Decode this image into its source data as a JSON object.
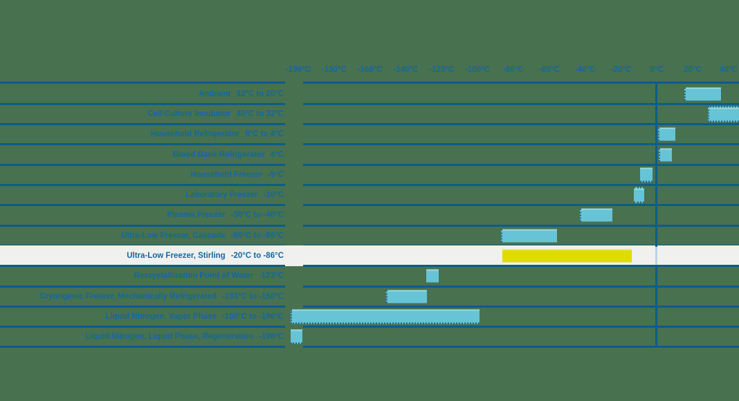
{
  "colors": {
    "background": "#48714f",
    "line": "#0b5c8b",
    "text": "#1368a0",
    "bar": "#66c4d6",
    "highlight_bar": "#dedc00",
    "highlight_row_bg": "#f0f0ee"
  },
  "axis": {
    "tick_labels": [
      "-196°C",
      "-180°C",
      "-160°C",
      "-140°C",
      "-120°C",
      "-100°C",
      "-80°C",
      "-60°C",
      "-40°C",
      "-20°C",
      "0°C",
      "20°C",
      "40°C"
    ],
    "tick_values": [
      -196,
      -180,
      -160,
      -140,
      -120,
      -100,
      -80,
      -60,
      -40,
      -20,
      0,
      20,
      40
    ],
    "zero_gridline": true
  },
  "rows": [
    {
      "label": "Ambient",
      "value_text": "32°C to 20°C",
      "bar_extent": [
        15.5,
        35
      ],
      "dashes": [
        "left"
      ],
      "highlight": false
    },
    {
      "label": "Cell Culture Incubator",
      "value_text": "40°C to 32°C",
      "bar_extent": [
        28.5,
        47
      ],
      "dashes": [
        "left",
        "top",
        "bottom",
        "right"
      ],
      "highlight": false
    },
    {
      "label": "Household Refrigerator",
      "value_text": "8°C to 4°C",
      "bar_extent": [
        0.5,
        9.5
      ],
      "dashes": [
        "left"
      ],
      "highlight": false
    },
    {
      "label": "Blood Bank Refrigerator",
      "value_text": "4°C",
      "bar_extent": [
        1,
        7.5
      ],
      "dashes": [
        "left"
      ],
      "highlight": false
    },
    {
      "label": "Household Freezer",
      "value_text": "-5°C",
      "bar_extent": [
        -9.5,
        -2.5
      ],
      "dashes": [
        "bottom"
      ],
      "highlight": false
    },
    {
      "label": "Laboratory Freezer",
      "value_text": "-10°C",
      "bar_extent": [
        -13,
        -7
      ],
      "dashes": [
        "top",
        "bottom"
      ],
      "highlight": false
    },
    {
      "label": "Plasma Freezer",
      "value_text": "-30°C to -40°C",
      "bar_extent": [
        -43,
        -25.5
      ],
      "dashes": [
        "left"
      ],
      "highlight": false
    },
    {
      "label": "Ultra-Low Freezer, Cascade",
      "value_text": "-60°C to -86°C",
      "bar_extent": [
        -87,
        -56.5
      ],
      "dashes": [
        "left"
      ],
      "highlight": false
    },
    {
      "label": "Ultra-Low Freezer, Stirling",
      "value_text": "-20°C to -86°C",
      "bar_extent": [
        -86,
        -14
      ],
      "dashes": [],
      "highlight": true
    },
    {
      "label": "Recrystallization Point of Water",
      "value_text": "-123°C",
      "bar_extent": [
        -128.5,
        -121.5
      ],
      "dashes": [],
      "highlight": false
    },
    {
      "label": "Cryongenic Freezer, Mechanically Refrigerated",
      "value_text": "-133°C to -150°C",
      "bar_extent": [
        -151,
        -129
      ],
      "dashes": [
        "left"
      ],
      "highlight": false
    },
    {
      "label": "Liquid Nitrogen, Vapor Phase",
      "value_text": "-100°C to -196°C",
      "bar_extent": [
        -199.5,
        -99.5
      ],
      "dashes": [
        "left",
        "bottom"
      ],
      "highlight": false
    },
    {
      "label": "Liquid Nitrogen, Liquid Phase, Regeneration",
      "value_text": "-196°C",
      "bar_extent": [
        -199.5,
        -194
      ],
      "dashes": [
        "bottom"
      ],
      "highlight": false
    }
  ],
  "chart_data": {
    "type": "bar",
    "orientation": "horizontal",
    "title": "",
    "xlabel": "",
    "ylabel": "",
    "x_tick_labels": [
      "-196°C",
      "-180°C",
      "-160°C",
      "-140°C",
      "-120°C",
      "-100°C",
      "-80°C",
      "-60°C",
      "-40°C",
      "-20°C",
      "0°C",
      "20°C",
      "40°C"
    ],
    "xlim": [
      -200,
      40
    ],
    "grid": "zero-line-only",
    "legend": "none",
    "categories": [
      "Ambient",
      "Cell Culture Incubator",
      "Household Refrigerator",
      "Blood Bank Refrigerator",
      "Household Freezer",
      "Laboratory Freezer",
      "Plasma Freezer",
      "Ultra-Low Freezer, Cascade",
      "Ultra-Low Freezer, Stirling",
      "Recrystallization Point of Water",
      "Cryongenic Freezer, Mechanically Refrigerated",
      "Liquid Nitrogen, Vapor Phase",
      "Liquid Nitrogen, Liquid Phase, Regeneration"
    ],
    "ranges_celsius": [
      [
        32,
        20
      ],
      [
        40,
        32
      ],
      [
        8,
        4
      ],
      [
        4,
        4
      ],
      [
        -5,
        -5
      ],
      [
        -10,
        -10
      ],
      [
        -30,
        -40
      ],
      [
        -60,
        -86
      ],
      [
        -20,
        -86
      ],
      [
        -123,
        -123
      ],
      [
        -133,
        -150
      ],
      [
        -100,
        -196
      ],
      [
        -196,
        -196
      ]
    ],
    "highlighted_category": "Ultra-Low Freezer, Stirling",
    "bar_color": "#66c4d6",
    "highlight_color": "#dedc00"
  }
}
